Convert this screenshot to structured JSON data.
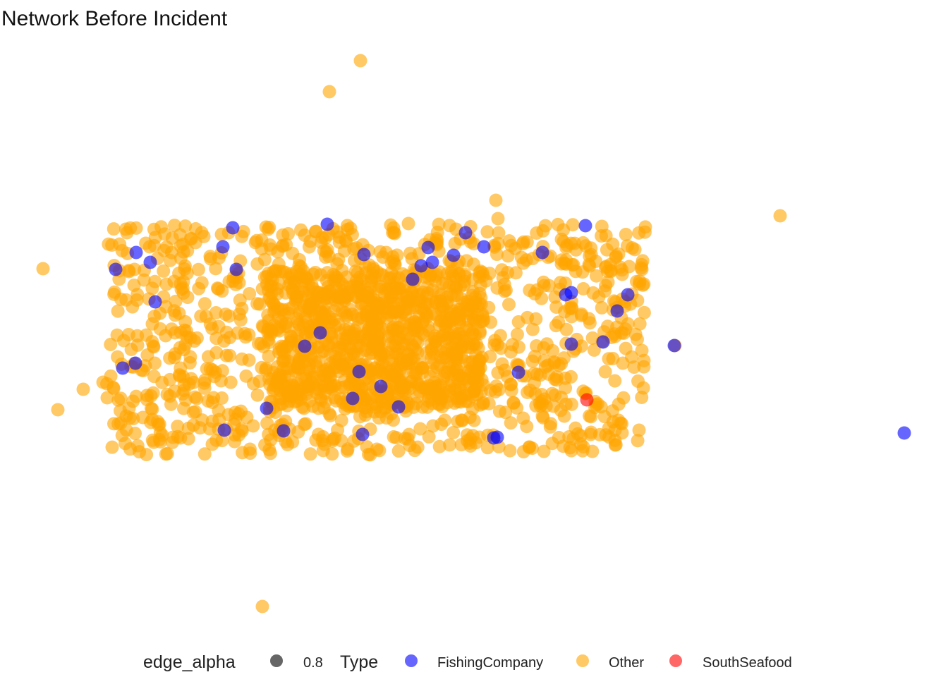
{
  "chart_data": {
    "type": "scatter",
    "title": "Network Before Incident",
    "xlabel": "",
    "ylabel": "",
    "grid": false,
    "axes": false,
    "legend_position": "bottom",
    "legend": {
      "edge_alpha": {
        "title": "edge_alpha",
        "entries": [
          {
            "label": "0.8",
            "color": "#555555"
          }
        ]
      },
      "type": {
        "title": "Type",
        "entries": [
          {
            "label": "FishingCompany",
            "color": "#0000ff"
          },
          {
            "label": "Other",
            "color": "#ffa500"
          },
          {
            "label": "SouthSeafood",
            "color": "#ff0000"
          }
        ]
      }
    },
    "point_alpha": 0.6,
    "series": [
      {
        "name": "Other",
        "color": "#ffa500",
        "note_cluster": {
          "count": 1900,
          "x_range": [
            150,
            915
          ],
          "y_range": [
            318,
            645
          ],
          "seed": 7
        },
        "x": [
          511,
          467,
          703,
          706,
          1106,
          61,
          82,
          118,
          146,
          152,
          372,
          910,
          957,
          883,
          906,
          180,
          579,
          910,
          862,
          892
        ],
        "y": [
          86,
          130,
          284,
          310,
          306,
          381,
          581,
          552,
          542,
          564,
          860,
          497,
          490,
          515,
          610,
          330,
          317,
          382,
          400,
          378
        ]
      },
      {
        "name": "FishingCompany",
        "color": "#0000ff",
        "x": [
          1282,
          164,
          193,
          330,
          464,
          516,
          607,
          643,
          613,
          597,
          585,
          660,
          686,
          769,
          830,
          802,
          810,
          890,
          875,
          855,
          810,
          735,
          454,
          432,
          509,
          540,
          500,
          565,
          378,
          318,
          402,
          514,
          700,
          705,
          174,
          192,
          213,
          220,
          316,
          335,
          956
        ],
        "y": [
          614,
          382,
          358,
          323,
          318,
          361,
          351,
          362,
          372,
          377,
          396,
          330,
          350,
          358,
          320,
          418,
          415,
          418,
          441,
          485,
          488,
          528,
          472,
          491,
          527,
          548,
          565,
          577,
          579,
          610,
          611,
          616,
          621,
          620,
          522,
          515,
          372,
          428,
          350,
          382,
          490
        ]
      },
      {
        "name": "SouthSeafood",
        "color": "#ff0000",
        "x": [
          832
        ],
        "y": [
          567
        ]
      }
    ]
  }
}
